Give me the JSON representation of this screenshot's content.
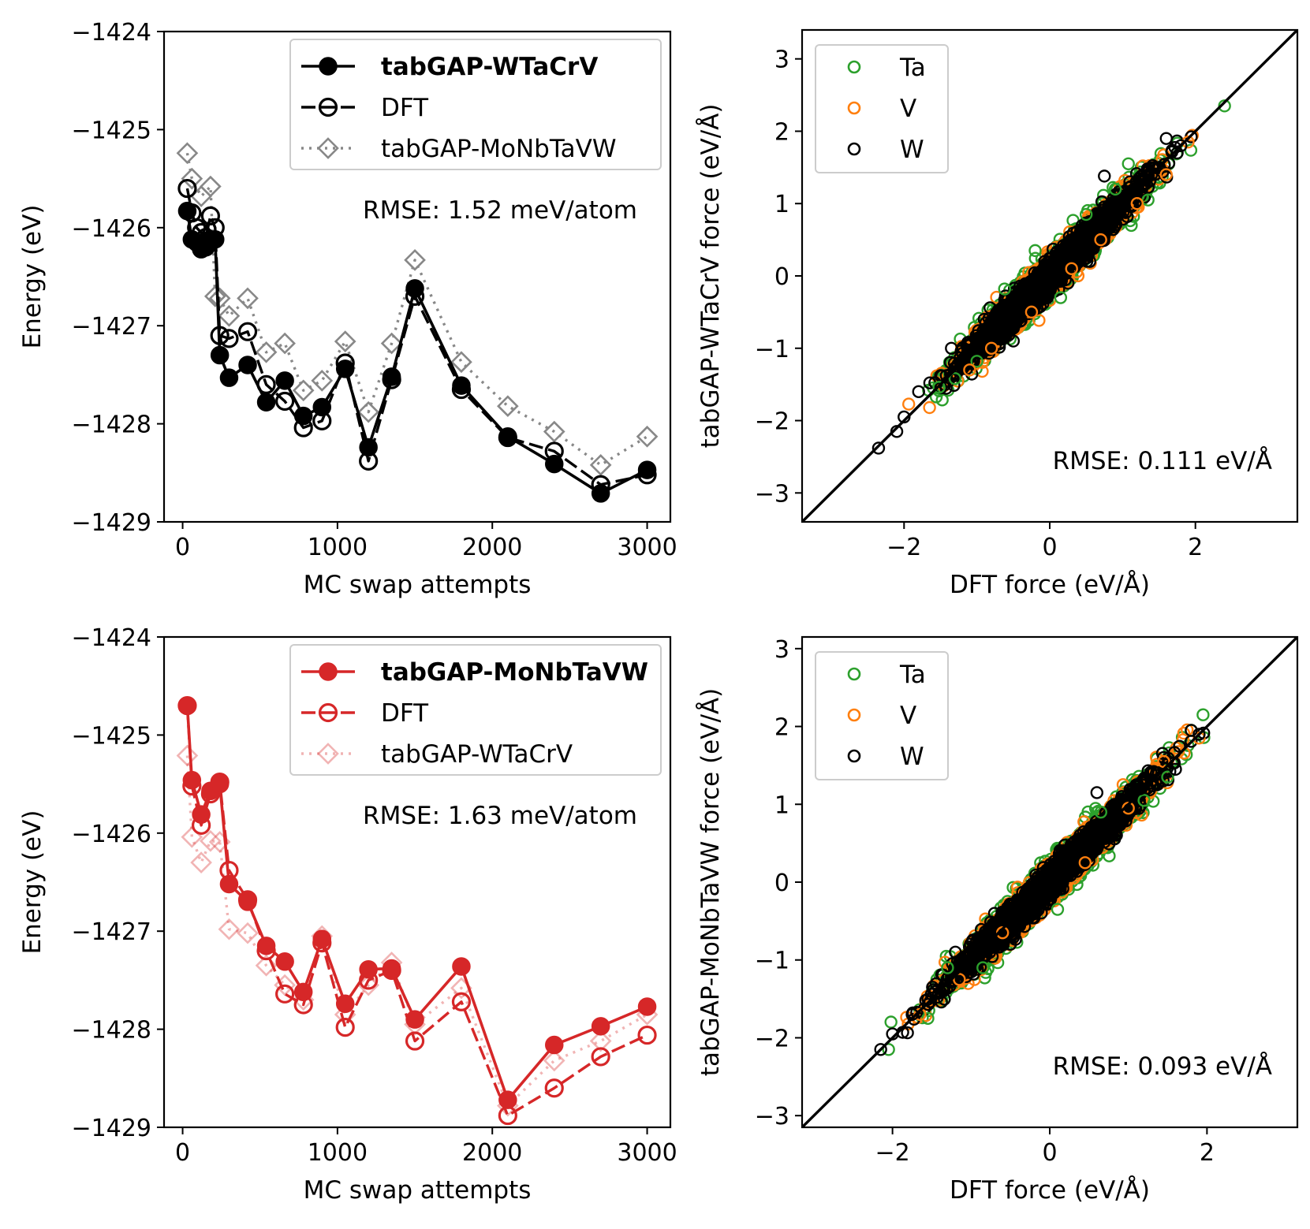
{
  "chart_data": [
    {
      "type": "line",
      "id": "energy-top",
      "xlabel": "MC swap attempts",
      "ylabel": "Energy (eV)",
      "xlim": [
        -120,
        3150
      ],
      "ylim": [
        -1429,
        -1424
      ],
      "xticks": [
        0,
        1000,
        2000,
        3000
      ],
      "xtick_labels": [
        "0",
        "1000",
        "2000",
        "3000"
      ],
      "yticks": [
        -1424,
        -1425,
        -1426,
        -1427,
        -1428,
        -1429
      ],
      "ytick_labels": [
        "−1424",
        "−1425",
        "−1426",
        "−1427",
        "−1428",
        "−1429"
      ],
      "annotation": "RMSE: 1.52 meV/atom",
      "legend_position": "upper-right",
      "series": [
        {
          "name": "tabGAP-WTaCrV",
          "bold": true,
          "color": "#000000",
          "dash": "solid",
          "marker": "filled-circle",
          "opacity": 1,
          "x": [
            30,
            60,
            90,
            120,
            150,
            180,
            210,
            240,
            300,
            420,
            540,
            660,
            780,
            900,
            1050,
            1200,
            1350,
            1500,
            1800,
            2100,
            2400,
            2700,
            3000
          ],
          "y": [
            -1425.83,
            -1426.12,
            -1426.15,
            -1426.22,
            -1426.2,
            -1426.12,
            -1426.12,
            -1427.3,
            -1427.53,
            -1427.4,
            -1427.78,
            -1427.56,
            -1427.92,
            -1427.83,
            -1427.44,
            -1428.24,
            -1427.52,
            -1426.62,
            -1427.61,
            -1428.13,
            -1428.41,
            -1428.71,
            -1428.47
          ]
        },
        {
          "name": "DFT",
          "bold": false,
          "color": "#000000",
          "dash": "dashed",
          "marker": "open-circle",
          "opacity": 1,
          "x": [
            30,
            60,
            90,
            120,
            150,
            180,
            210,
            240,
            300,
            420,
            540,
            660,
            780,
            900,
            1050,
            1200,
            1350,
            1500,
            1800,
            2100,
            2400,
            2700,
            3000
          ],
          "y": [
            -1425.6,
            -1425.85,
            -1426.0,
            -1426.05,
            -1426.1,
            -1425.88,
            -1426.0,
            -1427.1,
            -1427.13,
            -1427.06,
            -1427.6,
            -1427.77,
            -1428.04,
            -1427.97,
            -1427.38,
            -1428.38,
            -1427.55,
            -1426.7,
            -1427.65,
            -1428.14,
            -1428.28,
            -1428.62,
            -1428.52
          ]
        },
        {
          "name": "tabGAP-MoNbTaVW",
          "bold": false,
          "color": "#888888",
          "dash": "dotted",
          "marker": "open-diamond",
          "opacity": 1,
          "x": [
            30,
            60,
            120,
            180,
            210,
            240,
            300,
            420,
            540,
            660,
            780,
            900,
            1050,
            1200,
            1350,
            1500,
            1800,
            2100,
            2400,
            2700,
            3000
          ],
          "y": [
            -1425.24,
            -1425.5,
            -1425.68,
            -1425.58,
            -1426.7,
            -1426.72,
            -1426.9,
            -1426.72,
            -1427.27,
            -1427.18,
            -1427.66,
            -1427.56,
            -1427.16,
            -1427.88,
            -1427.18,
            -1426.33,
            -1427.37,
            -1427.82,
            -1428.08,
            -1428.42,
            -1428.13
          ]
        }
      ]
    },
    {
      "type": "scatter",
      "id": "force-top",
      "xlabel": "DFT force (eV/Å)",
      "ylabel": "tabGAP-WTaCrV force (eV/Å)",
      "xlim": [
        -3.4,
        3.4
      ],
      "ylim": [
        -3.4,
        3.4
      ],
      "xticks": [
        -2,
        0,
        2
      ],
      "xtick_labels": [
        "−2",
        "0",
        "2"
      ],
      "yticks": [
        3,
        2,
        1,
        0,
        -1,
        -2,
        -3
      ],
      "ytick_labels": [
        "3",
        "2",
        "1",
        "0",
        "−1",
        "−2",
        "−3"
      ],
      "annotation": "RMSE: 0.111 eV/Å",
      "legend_position": "upper-left",
      "diagonal": true,
      "series": [
        {
          "name": "Ta",
          "color": "#2ca02c",
          "x": [
            2.4,
            -1.52,
            1.08,
            -0.62,
            0.5,
            -1.0,
            1.35,
            -0.2,
            0.9,
            -1.3,
            0.15
          ],
          "y": [
            2.35,
            -1.54,
            1.55,
            -0.18,
            0.85,
            -1.18,
            1.05,
            0.35,
            1.2,
            -1.42,
            -0.3
          ]
        },
        {
          "name": "V",
          "color": "#ff7f0e",
          "x": [
            1.9,
            -1.65,
            1.2,
            -0.8,
            0.7,
            -0.25,
            1.6,
            -1.1,
            0.3
          ],
          "y": [
            1.85,
            -1.82,
            1.0,
            -1.0,
            0.5,
            -0.5,
            1.4,
            -1.3,
            0.1
          ]
        },
        {
          "name": "W",
          "color": "#000000",
          "x": [
            -2.35,
            -2.1,
            -2.0,
            -1.8,
            1.6,
            1.75,
            1.8,
            0.75,
            -0.5,
            0.25,
            1.1,
            -1.35,
            0.55,
            -0.9,
            1.45
          ],
          "y": [
            -2.38,
            -2.15,
            -1.95,
            -1.6,
            1.9,
            1.7,
            1.8,
            1.38,
            -0.9,
            -0.1,
            1.3,
            -1.0,
            0.2,
            -0.6,
            1.5
          ]
        }
      ],
      "cloud": {
        "count_per_species": [
          2200,
          1700,
          2600
        ],
        "spread": [
          0.1,
          0.09,
          0.075
        ],
        "order": [
          "Ta",
          "V",
          "W"
        ]
      }
    },
    {
      "type": "line",
      "id": "energy-bottom",
      "xlabel": "MC swap attempts",
      "ylabel": "Energy (eV)",
      "xlim": [
        -120,
        3150
      ],
      "ylim": [
        -1429,
        -1424
      ],
      "xticks": [
        0,
        1000,
        2000,
        3000
      ],
      "xtick_labels": [
        "0",
        "1000",
        "2000",
        "3000"
      ],
      "yticks": [
        -1424,
        -1425,
        -1426,
        -1427,
        -1428,
        -1429
      ],
      "ytick_labels": [
        "−1424",
        "−1425",
        "−1426",
        "−1427",
        "−1428",
        "−1429"
      ],
      "annotation": "RMSE: 1.63 meV/atom",
      "legend_position": "upper-right",
      "series": [
        {
          "name": "tabGAP-MoNbTaVW",
          "bold": true,
          "color": "#d62728",
          "dash": "solid",
          "marker": "filled-circle",
          "opacity": 1,
          "x": [
            30,
            60,
            120,
            180,
            240,
            300,
            420,
            540,
            660,
            780,
            900,
            1050,
            1200,
            1350,
            1500,
            1800,
            2100,
            2400,
            2700,
            3000
          ],
          "y": [
            -1424.7,
            -1425.46,
            -1425.81,
            -1425.57,
            -1425.5,
            -1426.52,
            -1426.7,
            -1427.15,
            -1427.31,
            -1427.62,
            -1427.08,
            -1427.74,
            -1427.39,
            -1427.38,
            -1427.9,
            -1427.36,
            -1428.72,
            -1428.16,
            -1427.97,
            -1427.77
          ]
        },
        {
          "name": "DFT",
          "bold": false,
          "color": "#d62728",
          "dash": "dashed",
          "marker": "open-circle",
          "opacity": 1,
          "x": [
            30,
            60,
            120,
            180,
            240,
            300,
            420,
            540,
            660,
            780,
            900,
            1050,
            1200,
            1350,
            1500,
            1800,
            2100,
            2400,
            2700,
            3000
          ],
          "y": [
            -1424.7,
            -1425.52,
            -1425.92,
            -1425.6,
            -1425.48,
            -1426.38,
            -1426.68,
            -1427.2,
            -1427.64,
            -1427.75,
            -1427.12,
            -1427.98,
            -1427.5,
            -1427.4,
            -1428.12,
            -1427.72,
            -1428.88,
            -1428.6,
            -1428.28,
            -1428.06
          ]
        },
        {
          "name": "tabGAP-WTaCrV",
          "bold": false,
          "color": "#d62728",
          "dash": "dotted",
          "marker": "open-diamond",
          "opacity": 0.35,
          "x": [
            30,
            60,
            120,
            180,
            240,
            300,
            420,
            540,
            660,
            780,
            900,
            1050,
            1200,
            1350,
            1500,
            1800,
            2100,
            2400,
            2700,
            3000
          ],
          "y": [
            -1425.21,
            -1426.04,
            -1426.3,
            -1426.08,
            -1426.09,
            -1426.98,
            -1427.02,
            -1427.35,
            -1427.55,
            -1427.7,
            -1427.05,
            -1427.85,
            -1427.55,
            -1427.32,
            -1427.95,
            -1427.58,
            -1428.78,
            -1428.32,
            -1428.12,
            -1427.85
          ]
        }
      ]
    },
    {
      "type": "scatter",
      "id": "force-bottom",
      "xlabel": "DFT force (eV/Å)",
      "ylabel": "tabGAP-MoNbTaVW force (eV/Å)",
      "xlim": [
        -3.15,
        3.15
      ],
      "ylim": [
        -3.15,
        3.15
      ],
      "xticks": [
        -2,
        0,
        2
      ],
      "xtick_labels": [
        "−2",
        "0",
        "2"
      ],
      "yticks": [
        3,
        2,
        1,
        0,
        -1,
        -2,
        -3
      ],
      "ytick_labels": [
        "3",
        "2",
        "1",
        "0",
        "−1",
        "−2",
        "−3"
      ],
      "annotation": "RMSE: 0.093 eV/Å",
      "legend_position": "upper-left",
      "diagonal": true,
      "series": [
        {
          "name": "Ta",
          "color": "#2ca02c",
          "x": [
            1.95,
            1.8,
            -2.05,
            -1.55,
            1.2,
            -0.85,
            0.65,
            -1.3,
            0.1,
            1.5
          ],
          "y": [
            2.15,
            1.95,
            -2.15,
            -1.75,
            1.05,
            -1.1,
            0.9,
            -1.1,
            -0.35,
            1.35
          ]
        },
        {
          "name": "V",
          "color": "#ff7f0e",
          "x": [
            1.9,
            -1.65,
            1.0,
            -0.6,
            0.45,
            -1.15,
            1.45
          ],
          "y": [
            1.85,
            -1.7,
            0.95,
            -0.65,
            0.25,
            -1.25,
            1.55
          ]
        },
        {
          "name": "W",
          "color": "#000000",
          "x": [
            -2.15,
            -2.0,
            -1.75,
            1.8,
            1.6,
            0.6,
            -0.4,
            1.15,
            0.2,
            -1.2,
            1.9
          ],
          "y": [
            -2.15,
            -1.95,
            -1.7,
            1.95,
            1.45,
            1.15,
            -0.35,
            1.2,
            0.4,
            -0.9,
            1.9
          ]
        }
      ],
      "cloud": {
        "count_per_species": [
          2200,
          1700,
          2600
        ],
        "spread": [
          0.095,
          0.085,
          0.07
        ],
        "order": [
          "Ta",
          "V",
          "W"
        ]
      }
    }
  ]
}
